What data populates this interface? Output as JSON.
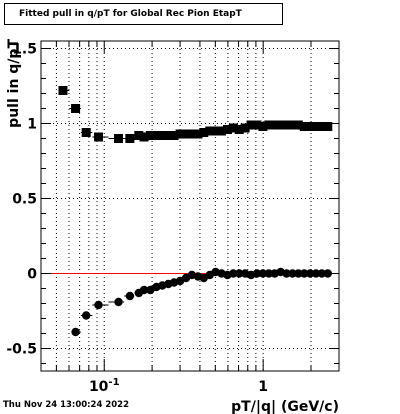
{
  "title": "Fitted pull in q/pT for Global Rec Pion EtapT",
  "datestamp": "Thu Nov 24 13:00:24 2022",
  "chart_data": {
    "type": "scatter",
    "title": "Fitted pull in q/pT for Global Rec Pion EtapT",
    "xlabel": "pT/|q| (GeV/c)",
    "ylabel": "pull in q/pT",
    "x_scale": "log",
    "xlim": [
      0.04,
      3.0
    ],
    "ylim": [
      -0.65,
      1.55
    ],
    "x_tick_labels": [
      "10^-1",
      "1"
    ],
    "y_ticks": [
      -0.5,
      0,
      0.5,
      1,
      1.5
    ],
    "y_tick_labels": [
      "-0.5",
      "0",
      "0.5",
      "1",
      "1.5"
    ],
    "grid": true,
    "reference_line": {
      "y": 0,
      "color": "#ff0000"
    },
    "series": [
      {
        "marker": "square",
        "color": "#000000",
        "x": [
          0.055,
          0.066,
          0.077,
          0.092,
          0.123,
          0.145,
          0.165,
          0.178,
          0.195,
          0.213,
          0.232,
          0.253,
          0.275,
          0.3,
          0.327,
          0.356,
          0.389,
          0.423,
          0.461,
          0.502,
          0.547,
          0.596,
          0.649,
          0.707,
          0.77,
          0.839,
          0.914,
          0.996,
          1.085,
          1.182,
          1.288,
          1.403,
          1.528,
          1.665,
          1.813,
          1.975,
          2.15,
          2.34,
          2.55
        ],
        "y": [
          1.22,
          1.1,
          0.94,
          0.91,
          0.9,
          0.9,
          0.92,
          0.91,
          0.92,
          0.92,
          0.92,
          0.92,
          0.92,
          0.93,
          0.93,
          0.93,
          0.93,
          0.94,
          0.95,
          0.95,
          0.95,
          0.96,
          0.97,
          0.96,
          0.97,
          0.99,
          0.99,
          0.98,
          0.99,
          0.99,
          0.99,
          0.99,
          0.99,
          0.99,
          0.98,
          0.98,
          0.98,
          0.98,
          0.98
        ],
        "yerr": [
          0.005,
          0.005,
          0.006,
          0.006,
          0.006,
          0.006,
          0.006,
          0.006,
          0.006,
          0.006,
          0.006,
          0.006,
          0.006,
          0.006,
          0.006,
          0.006,
          0.006,
          0.006,
          0.006,
          0.006,
          0.006,
          0.006,
          0.006,
          0.006,
          0.006,
          0.006,
          0.006,
          0.006,
          0.006,
          0.006,
          0.006,
          0.006,
          0.006,
          0.006,
          0.006,
          0.006,
          0.006,
          0.006,
          0.006
        ]
      },
      {
        "marker": "circle",
        "color": "#000000",
        "x": [
          0.066,
          0.077,
          0.092,
          0.123,
          0.145,
          0.165,
          0.178,
          0.195,
          0.213,
          0.232,
          0.253,
          0.275,
          0.3,
          0.327,
          0.356,
          0.389,
          0.423,
          0.461,
          0.502,
          0.547,
          0.596,
          0.649,
          0.707,
          0.77,
          0.839,
          0.914,
          0.996,
          1.085,
          1.182,
          1.288,
          1.403,
          1.528,
          1.665,
          1.813,
          1.975,
          2.15,
          2.34,
          2.55
        ],
        "y": [
          -0.39,
          -0.28,
          -0.21,
          -0.19,
          -0.15,
          -0.13,
          -0.11,
          -0.11,
          -0.09,
          -0.08,
          -0.07,
          -0.06,
          -0.05,
          -0.03,
          -0.01,
          -0.02,
          -0.03,
          -0.01,
          0.01,
          0.0,
          -0.01,
          0.0,
          0.0,
          0.0,
          -0.01,
          0.0,
          0.0,
          0.0,
          0.0,
          0.01,
          0.0,
          0.0,
          0.0,
          0.0,
          0.0,
          0.0,
          0.0,
          0.0
        ],
        "yerr": [
          0.005,
          0.006,
          0.006,
          0.006,
          0.006,
          0.006,
          0.006,
          0.006,
          0.006,
          0.006,
          0.006,
          0.006,
          0.006,
          0.006,
          0.006,
          0.006,
          0.006,
          0.006,
          0.006,
          0.006,
          0.006,
          0.006,
          0.006,
          0.006,
          0.006,
          0.006,
          0.006,
          0.006,
          0.006,
          0.006,
          0.006,
          0.006,
          0.006,
          0.006,
          0.006,
          0.006,
          0.006,
          0.006
        ]
      }
    ]
  }
}
